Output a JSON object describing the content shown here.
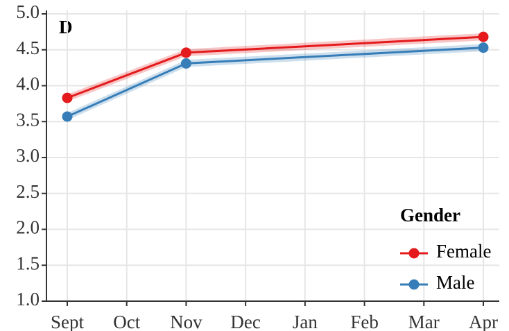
{
  "chart_data": {
    "type": "line",
    "panel_label": "D",
    "categories": [
      "Sept",
      "Oct",
      "Nov",
      "Dec",
      "Jan",
      "Feb",
      "Mar",
      "Apr"
    ],
    "ylim": [
      1.0,
      5.0
    ],
    "yticks": [
      {
        "value": 1,
        "label": "1.0"
      },
      {
        "value": 1.5,
        "label": "1.5"
      },
      {
        "value": 2,
        "label": "2.0"
      },
      {
        "value": 2.5,
        "label": "2.5"
      },
      {
        "value": 3,
        "label": "3.0"
      },
      {
        "value": 3.5,
        "label": "3.5"
      },
      {
        "value": 4,
        "label": "4.0"
      },
      {
        "value": 4.5,
        "label": "4.5"
      },
      {
        "value": 5,
        "label": "5.0"
      }
    ],
    "grid": true,
    "legend_title": "Gender",
    "legend_position": "lower right",
    "series": [
      {
        "name": "Female",
        "color": "#e41a1c",
        "x": [
          "Sept",
          "Nov",
          "Apr"
        ],
        "values": [
          3.83,
          4.46,
          4.68
        ],
        "ci": [
          0.05,
          0.05,
          0.05
        ]
      },
      {
        "name": "Male",
        "color": "#377eb8",
        "x": [
          "Sept",
          "Nov",
          "Apr"
        ],
        "values": [
          3.57,
          4.31,
          4.53
        ],
        "ci": [
          0.05,
          0.05,
          0.05
        ]
      }
    ]
  }
}
